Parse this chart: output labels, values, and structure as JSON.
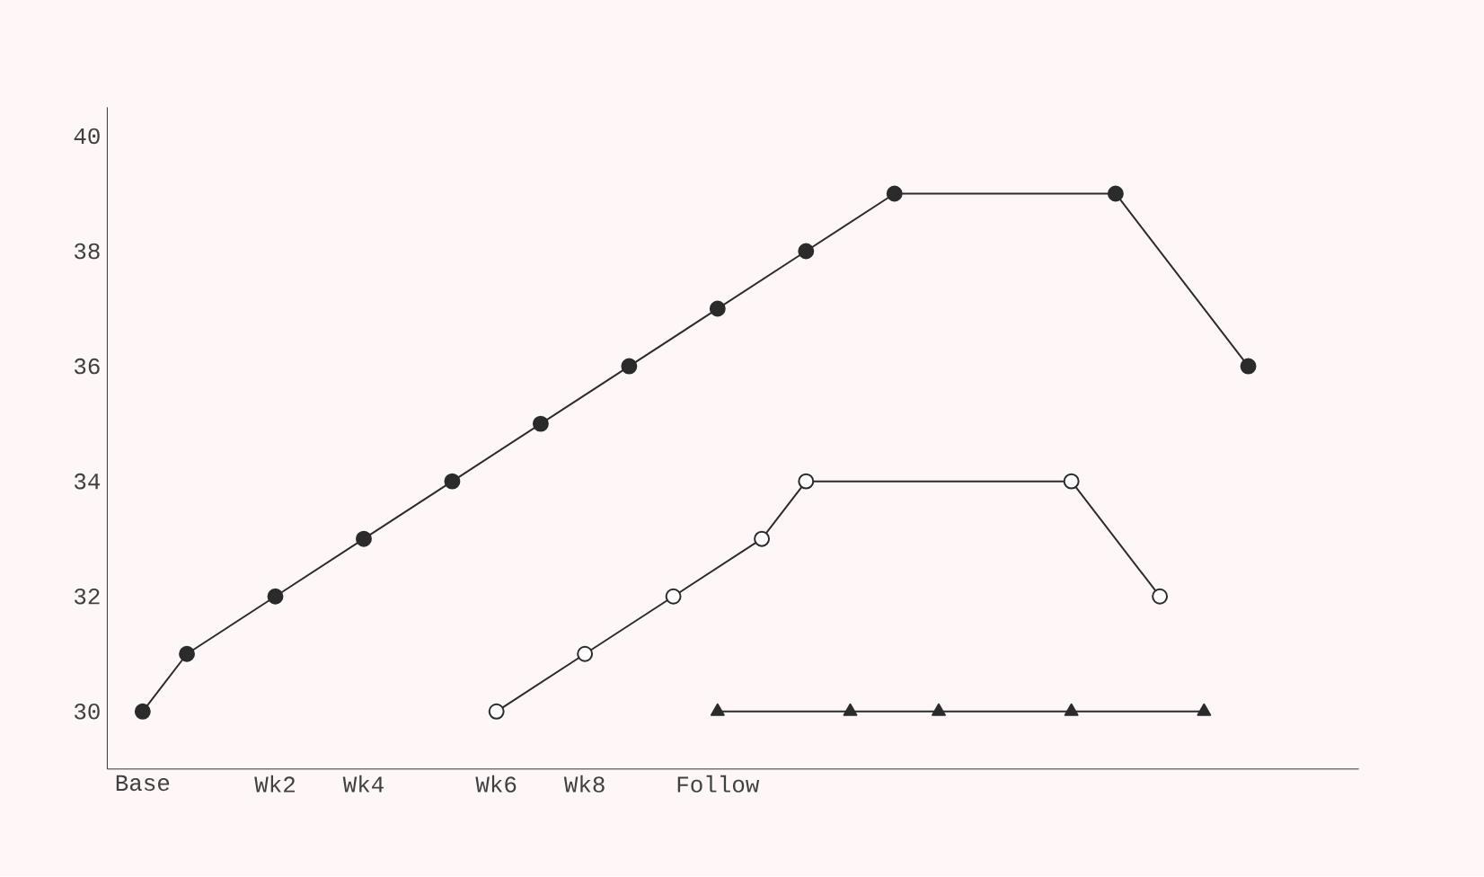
{
  "chart_data": {
    "type": "line",
    "categories": [
      "Base",
      null,
      null,
      "Wk2",
      null,
      "Wk4",
      null,
      null,
      "Wk6",
      null,
      "Wk8",
      null,
      null,
      "Follow",
      null,
      null,
      null,
      null,
      null,
      null,
      null,
      null,
      null,
      null,
      null,
      null
    ],
    "ylim": [
      29,
      40.5
    ],
    "yticks": [
      30,
      32,
      34,
      36,
      38,
      40
    ],
    "line_style": "solid",
    "series": [
      {
        "color": "#2b2b2b",
        "marker": "circle",
        "values": [
          30,
          31,
          null,
          32,
          null,
          33,
          null,
          34,
          null,
          35,
          null,
          36,
          null,
          37,
          null,
          38,
          null,
          39,
          null,
          null,
          null,
          null,
          39,
          null,
          null,
          36
        ]
      },
      {
        "color": "#2b2b2b",
        "marker": "circle",
        "values": [
          null,
          null,
          null,
          null,
          null,
          null,
          null,
          null,
          30,
          null,
          31,
          null,
          32,
          null,
          33,
          34,
          null,
          null,
          null,
          null,
          null,
          34,
          null,
          32,
          null,
          null
        ]
      },
      {
        "color": "#2b2b2b",
        "marker": "triangle",
        "values": [
          null,
          null,
          null,
          null,
          null,
          null,
          null,
          null,
          null,
          null,
          null,
          null,
          null,
          30,
          null,
          null,
          30,
          null,
          30,
          null,
          null,
          30,
          null,
          null,
          30,
          null
        ]
      }
    ]
  }
}
